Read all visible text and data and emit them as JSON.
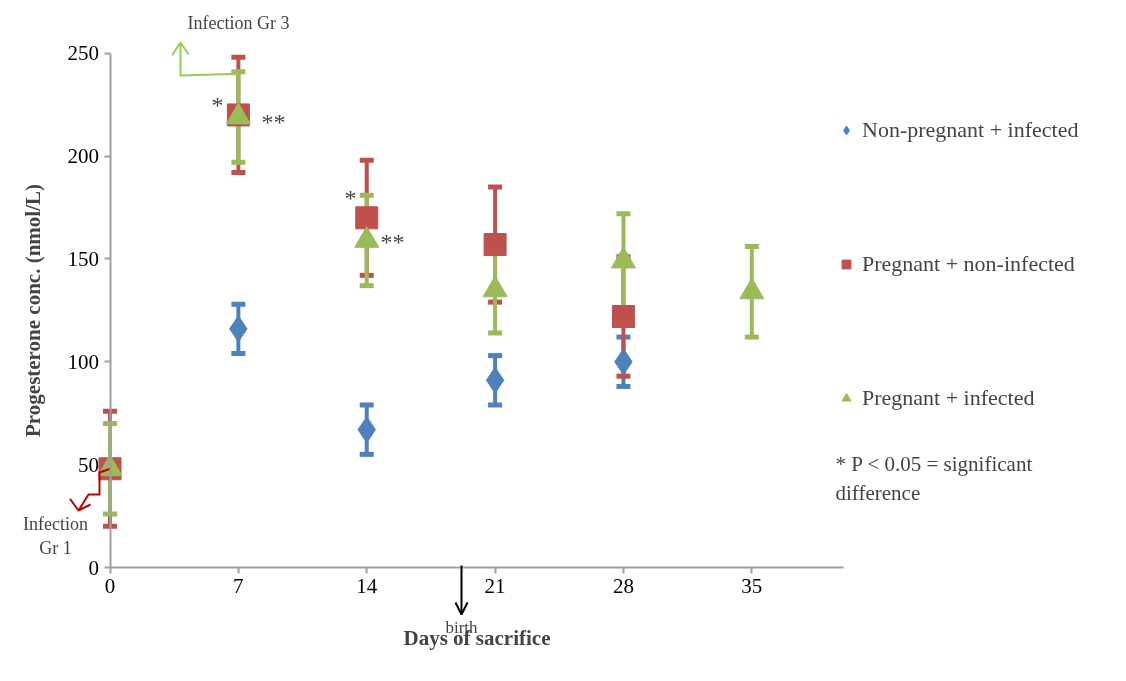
{
  "chart_data": {
    "type": "scatter",
    "xlabel": "Days of sacrifice",
    "ylabel": "Progesterone conc. (nmol/L)",
    "xlim": [
      0,
      40
    ],
    "xticks": [
      0,
      7,
      14,
      21,
      28,
      35
    ],
    "ylim": [
      0,
      250
    ],
    "yticks": [
      0,
      50,
      100,
      150,
      200,
      250
    ],
    "grid": false,
    "legend": "right",
    "series": [
      {
        "name": "Non-pregnant + infected",
        "color": "#4f81bd",
        "marker": "diamond",
        "x": [
          7,
          14,
          21,
          28
        ],
        "values": [
          116,
          67,
          91,
          100
        ],
        "errors": [
          12,
          12,
          12,
          12
        ]
      },
      {
        "name": "Pregnant + non-infected",
        "color": "#c0504d",
        "marker": "square",
        "x": [
          0,
          7,
          14,
          21,
          28
        ],
        "values": [
          48,
          220,
          170,
          157,
          122
        ],
        "errors": [
          28,
          28,
          28,
          28,
          29
        ]
      },
      {
        "name": "Pregnant + infected",
        "color": "#9bbb59",
        "marker": "triangle",
        "x": [
          0,
          7,
          14,
          21,
          28,
          35
        ],
        "values": [
          48,
          219,
          159,
          135,
          149,
          134
        ],
        "errors": [
          22,
          22,
          22,
          21,
          23,
          22
        ]
      }
    ],
    "annotations": [
      "*",
      "**",
      "*",
      "**",
      {
        "text": "Infection Gr 3",
        "x": 7,
        "y": 240
      },
      {
        "text": "Infection Gr 1",
        "x": 0,
        "y": 48
      },
      "birth",
      "* P < 0.05 = significant difference"
    ]
  }
}
